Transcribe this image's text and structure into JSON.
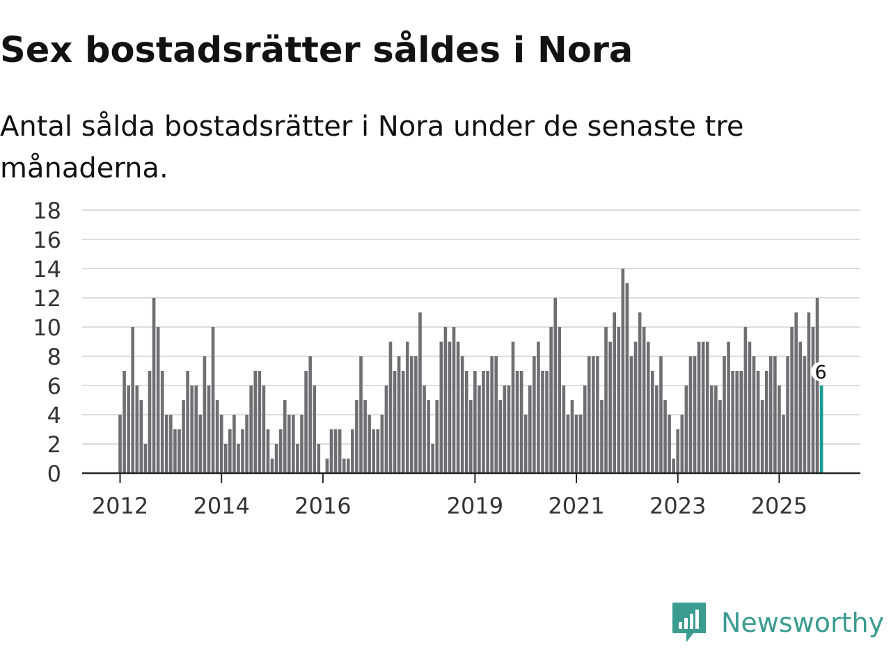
{
  "chart_data": {
    "type": "bar",
    "title": "Sex bostadsrätter såldes i Nora",
    "subtitle": "Antal sålda bostadsrätter i Nora under de senaste tre månaderna.",
    "xlabel": "",
    "ylabel": "",
    "ylim": [
      0,
      18
    ],
    "yticks": [
      "0",
      "2",
      "4",
      "6",
      "8",
      "10",
      "12",
      "14",
      "16",
      "18"
    ],
    "xtick_labels": [
      "2012",
      "2014",
      "2016",
      "2019",
      "2021",
      "2023",
      "2025"
    ],
    "xtick_index": [
      0,
      24,
      48,
      84,
      108,
      132,
      156
    ],
    "grid": true,
    "bar_color": "#6e6e73",
    "highlight_color": "#1a9e8f",
    "highlight_label": "6",
    "values": [
      4,
      7,
      6,
      10,
      6,
      5,
      2,
      7,
      12,
      10,
      7,
      4,
      4,
      3,
      3,
      5,
      7,
      6,
      6,
      4,
      8,
      6,
      10,
      5,
      4,
      2,
      3,
      4,
      2,
      3,
      4,
      6,
      7,
      7,
      6,
      3,
      1,
      2,
      3,
      5,
      4,
      4,
      2,
      4,
      7,
      8,
      6,
      2,
      0,
      1,
      3,
      3,
      3,
      1,
      1,
      3,
      5,
      8,
      5,
      4,
      3,
      3,
      4,
      6,
      9,
      7,
      8,
      7,
      9,
      8,
      8,
      11,
      6,
      5,
      2,
      5,
      9,
      10,
      9,
      10,
      9,
      8,
      7,
      5,
      7,
      6,
      7,
      7,
      8,
      8,
      5,
      6,
      6,
      9,
      7,
      7,
      4,
      6,
      8,
      9,
      7,
      7,
      10,
      12,
      10,
      6,
      4,
      5,
      4,
      4,
      6,
      8,
      8,
      8,
      5,
      10,
      9,
      11,
      10,
      14,
      13,
      8,
      9,
      11,
      10,
      9,
      7,
      6,
      8,
      5,
      4,
      1,
      3,
      4,
      6,
      8,
      8,
      9,
      9,
      9,
      6,
      6,
      5,
      8,
      9,
      7,
      7,
      7,
      10,
      9,
      8,
      7,
      5,
      7,
      8,
      8,
      6,
      4,
      8,
      10,
      11,
      9,
      8,
      11,
      10,
      12,
      6
    ]
  },
  "brand": {
    "name": "Newsworthy",
    "color": "#3a9b8f",
    "icon": "newsworthy-logo-icon"
  }
}
